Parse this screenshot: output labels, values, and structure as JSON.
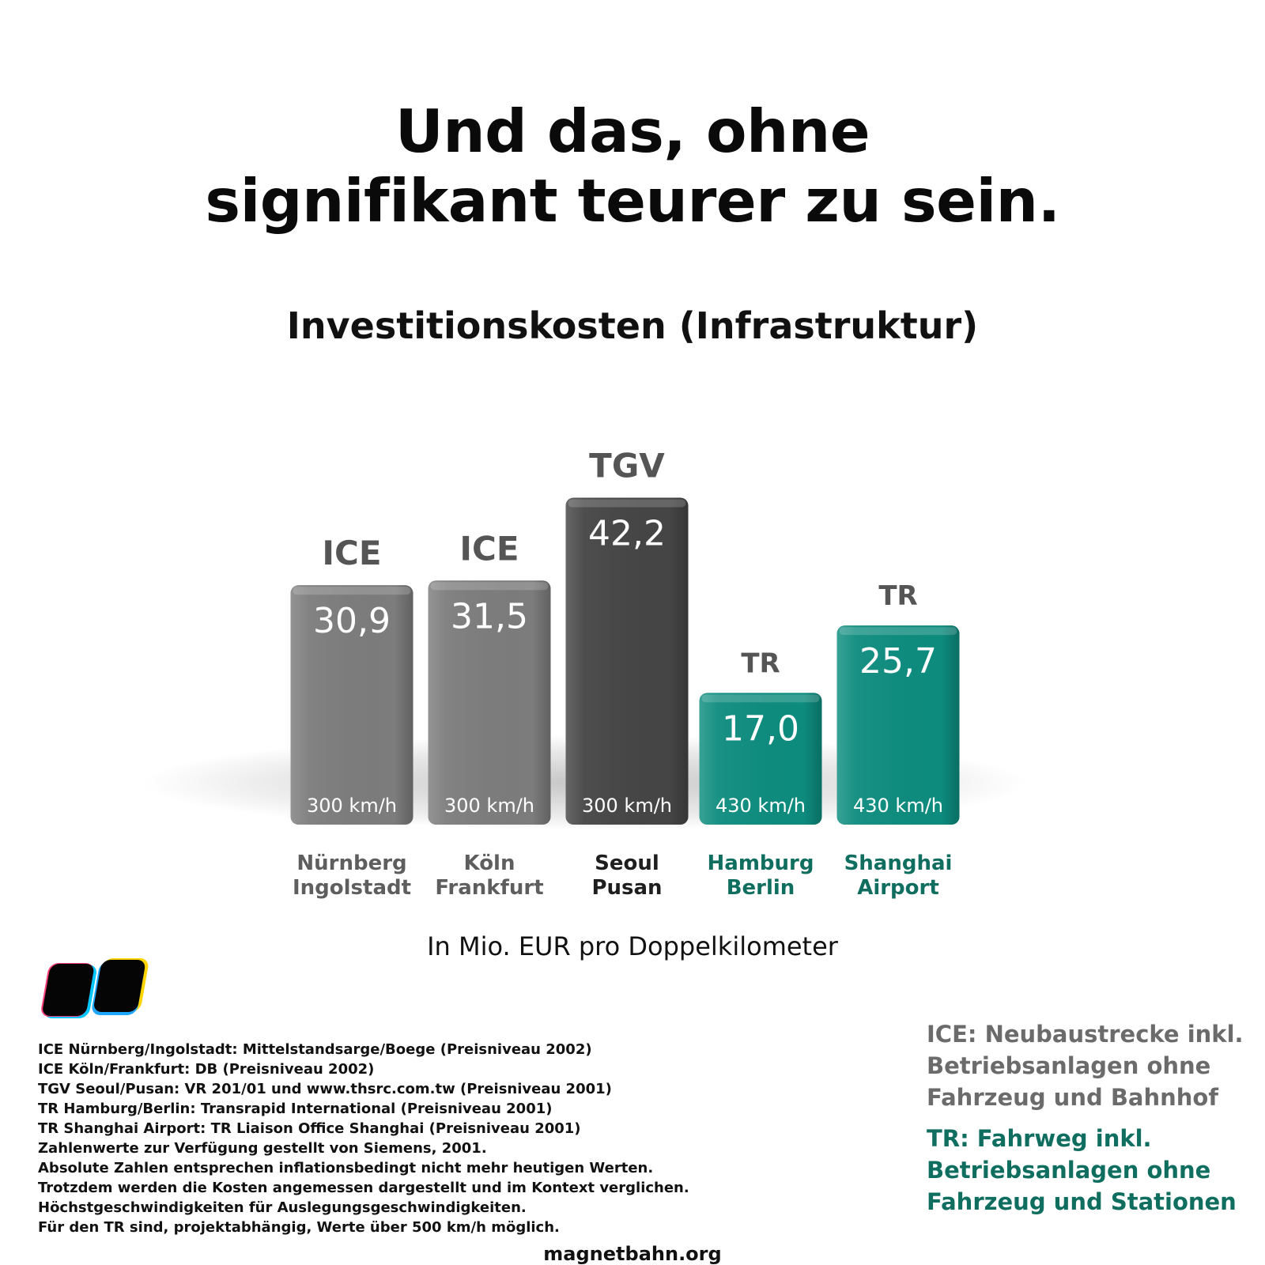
{
  "headline": {
    "line1": "Und das, ohne",
    "line2": "signifikant teurer zu sein."
  },
  "chart_data": {
    "type": "bar",
    "title": "Investitionskosten (Infrastruktur)",
    "unit_label": "In Mio. EUR pro Doppelkilometer",
    "categories": [
      [
        "Nürnberg",
        "Ingolstadt"
      ],
      [
        "Köln",
        "Frankfurt"
      ],
      [
        "Seoul",
        "Pusan"
      ],
      [
        "Hamburg",
        "Berlin"
      ],
      [
        "Shanghai",
        "Airport"
      ]
    ],
    "bars": [
      {
        "system": "ICE",
        "value": 30.9,
        "value_label": "30,9",
        "speed": "300 km/h",
        "color": "#7c7c7c",
        "label_color": "#5e5e5e"
      },
      {
        "system": "ICE",
        "value": 31.5,
        "value_label": "31,5",
        "speed": "300 km/h",
        "color": "#7c7c7c",
        "label_color": "#5e5e5e"
      },
      {
        "system": "TGV",
        "value": 42.2,
        "value_label": "42,2",
        "speed": "300 km/h",
        "color": "#454545",
        "label_color": "#1e1e1e"
      },
      {
        "system": "TR",
        "value": 17.0,
        "value_label": "17,0",
        "speed": "430 km/h",
        "color": "#0d8c7e",
        "label_color": "#0f6e5f"
      },
      {
        "system": "TR",
        "value": 25.7,
        "value_label": "25,7",
        "speed": "430 km/h",
        "color": "#0d8c7e",
        "label_color": "#0f6e5f"
      }
    ],
    "ylim": [
      0,
      45
    ],
    "system_label_color": "#555555"
  },
  "sources": [
    "ICE Nürnberg/Ingolstadt: Mittelstandsarge/Boege (Preisniveau 2002)",
    "ICE Köln/Frankfurt: DB (Preisniveau 2002)",
    "TGV Seoul/Pusan: VR 201/01 und www.thsrc.com.tw (Preisniveau 2001)",
    "TR Hamburg/Berlin: Transrapid International (Preisniveau 2001)",
    "TR Shanghai Airport: TR Liaison Office Shanghai (Preisniveau 2001)",
    "Zahlenwerte zur Verfügung gestellt von Siemens, 2001.",
    "Absolute Zahlen entsprechen inflationsbedingt nicht mehr heutigen Werten.",
    "Trotzdem werden die Kosten angemessen dargestellt und im Kontext verglichen.",
    "Höchstgeschwindigkeiten für Auslegungsgeschwindigkeiten.",
    "Für den TR sind, projektabhängig, Werte über 500 km/h möglich."
  ],
  "notes": {
    "ice": [
      "ICE: Neubaustrecke inkl.",
      "Betriebsanlagen ohne",
      "Fahrzeug und Bahnhof"
    ],
    "tr": [
      "TR: Fahrweg inkl.",
      "Betriebsanlagen ohne",
      "Fahrzeug und Stationen"
    ]
  },
  "footer": "magnetbahn.org",
  "logo_icon": "magnetbahn-logo-icon"
}
